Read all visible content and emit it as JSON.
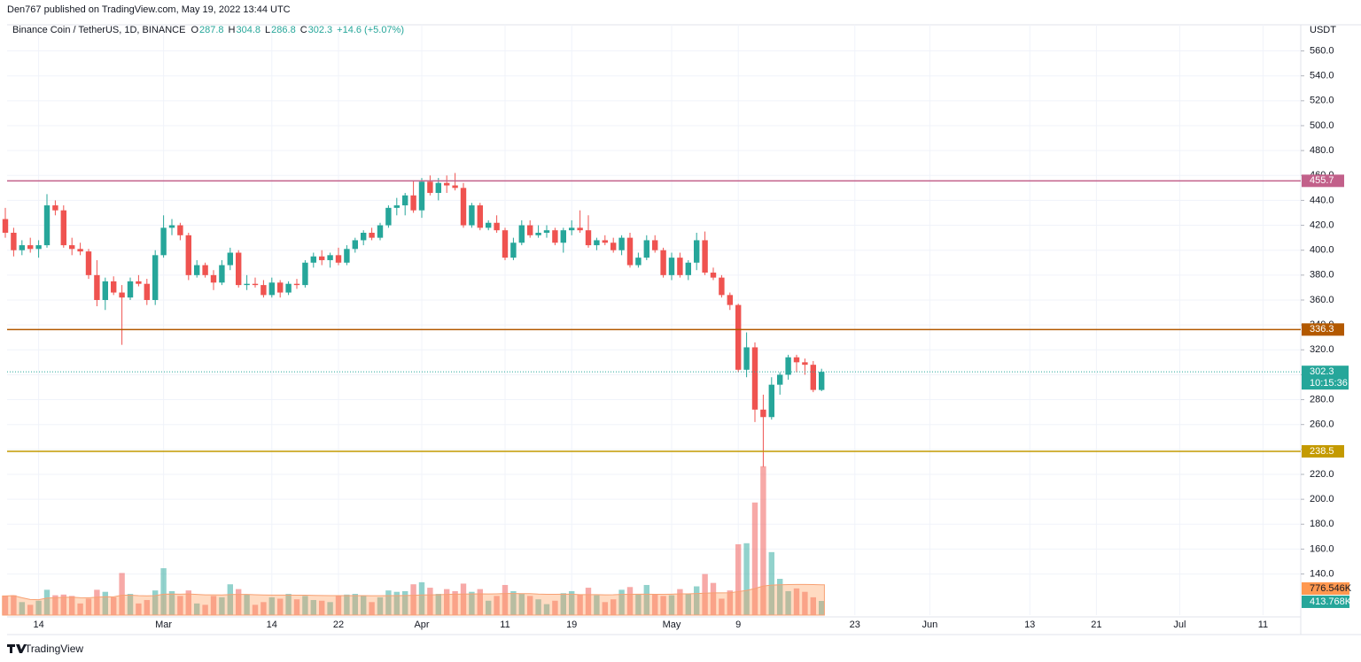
{
  "publisher": "Den767 published on TradingView.com, May 19, 2022 13:44 UTC",
  "footer": "TradingView",
  "chart_data": {
    "type": "candlestick",
    "title": "Binance Coin / TetherUS, 1D, BINANCE",
    "legend_keys": [
      "O",
      "H",
      "L",
      "C"
    ],
    "change": "+14.6 (+5.07%)",
    "y_unit": "USDT",
    "x": [
      "02-10",
      "02-11",
      "02-12",
      "02-13",
      "02-14",
      "02-15",
      "02-16",
      "02-17",
      "02-18",
      "02-19",
      "02-20",
      "02-21",
      "02-22",
      "02-23",
      "02-24",
      "02-25",
      "02-26",
      "02-27",
      "02-28",
      "03-01",
      "03-02",
      "03-03",
      "03-04",
      "03-05",
      "03-06",
      "03-07",
      "03-08",
      "03-09",
      "03-10",
      "03-11",
      "03-12",
      "03-13",
      "03-14",
      "03-15",
      "03-16",
      "03-17",
      "03-18",
      "03-19",
      "03-20",
      "03-21",
      "03-22",
      "03-23",
      "03-24",
      "03-25",
      "03-26",
      "03-27",
      "03-28",
      "03-29",
      "03-30",
      "03-31",
      "04-01",
      "04-02",
      "04-03",
      "04-04",
      "04-05",
      "04-06",
      "04-07",
      "04-08",
      "04-09",
      "04-10",
      "04-11",
      "04-12",
      "04-13",
      "04-14",
      "04-15",
      "04-16",
      "04-17",
      "04-18",
      "04-19",
      "04-20",
      "04-21",
      "04-22",
      "04-23",
      "04-24",
      "04-25",
      "04-26",
      "04-27",
      "04-28",
      "04-29",
      "04-30",
      "05-01",
      "05-02",
      "05-03",
      "05-04",
      "05-05",
      "05-06",
      "05-07",
      "05-08",
      "05-09",
      "05-10",
      "05-11",
      "05-12",
      "05-13",
      "05-14",
      "05-15",
      "05-16",
      "05-17",
      "05-18",
      "05-19"
    ],
    "open": [
      425,
      414,
      400,
      404,
      401,
      404,
      436,
      432,
      404,
      401,
      399,
      380,
      360,
      375,
      366,
      362,
      375,
      373,
      360,
      396,
      418,
      420,
      412,
      380,
      388,
      380,
      374,
      388,
      398,
      372,
      373,
      372,
      364,
      374,
      366,
      373,
      372,
      390,
      395,
      392,
      396,
      390,
      401,
      408,
      414,
      410,
      420,
      434,
      436,
      444,
      432,
      455,
      446,
      454,
      452,
      450,
      420,
      436,
      418,
      422,
      416,
      394,
      406,
      420,
      412,
      414,
      416,
      406,
      416,
      418,
      416,
      404,
      408,
      406,
      400,
      410,
      388,
      394,
      408,
      400,
      380,
      394,
      380,
      390,
      408,
      382,
      378,
      364,
      356,
      304,
      322,
      272,
      266,
      292,
      300,
      314,
      310,
      308,
      287.8
    ],
    "high": [
      434,
      418,
      408,
      410,
      408,
      445,
      440,
      436,
      410,
      406,
      401,
      392,
      378,
      379,
      372,
      378,
      380,
      377,
      400,
      428,
      425,
      422,
      414,
      392,
      390,
      384,
      392,
      402,
      400,
      380,
      378,
      376,
      378,
      376,
      375,
      377,
      392,
      398,
      400,
      398,
      402,
      404,
      410,
      416,
      418,
      422,
      436,
      442,
      446,
      456,
      458,
      460,
      458,
      460,
      462,
      454,
      438,
      438,
      424,
      428,
      418,
      410,
      424,
      424,
      420,
      420,
      418,
      418,
      424,
      432,
      428,
      410,
      412,
      410,
      412,
      414,
      398,
      412,
      412,
      402,
      398,
      398,
      392,
      414,
      415,
      386,
      380,
      366,
      357,
      334,
      326,
      284,
      298,
      302,
      316,
      316,
      313,
      311,
      304.8
    ],
    "low": [
      410,
      395,
      396,
      398,
      394,
      402,
      428,
      402,
      396,
      396,
      377,
      355,
      352,
      364,
      324,
      360,
      371,
      356,
      356,
      394,
      412,
      408,
      376,
      378,
      378,
      368,
      372,
      384,
      370,
      368,
      370,
      362,
      362,
      362,
      364,
      369,
      370,
      386,
      388,
      386,
      388,
      388,
      398,
      404,
      408,
      408,
      418,
      428,
      428,
      430,
      426,
      444,
      440,
      446,
      448,
      418,
      418,
      416,
      416,
      414,
      392,
      392,
      404,
      410,
      410,
      410,
      404,
      398,
      412,
      414,
      402,
      400,
      404,
      398,
      396,
      386,
      386,
      392,
      398,
      378,
      376,
      378,
      376,
      384,
      380,
      376,
      362,
      352,
      302,
      298,
      262,
      226,
      264,
      284,
      296,
      302,
      300,
      286,
      286.8
    ],
    "close": [
      414,
      400,
      404,
      401,
      404,
      436,
      432,
      404,
      401,
      399,
      380,
      360,
      375,
      366,
      362,
      375,
      373,
      360,
      396,
      418,
      420,
      412,
      380,
      388,
      380,
      374,
      388,
      398,
      372,
      373,
      372,
      364,
      374,
      366,
      373,
      372,
      390,
      395,
      392,
      396,
      390,
      401,
      408,
      414,
      410,
      420,
      434,
      436,
      444,
      432,
      455,
      446,
      454,
      452,
      450,
      420,
      436,
      418,
      422,
      416,
      394,
      406,
      420,
      412,
      414,
      416,
      406,
      416,
      418,
      416,
      404,
      408,
      406,
      400,
      410,
      388,
      394,
      408,
      400,
      380,
      394,
      380,
      390,
      408,
      382,
      378,
      364,
      356,
      304,
      322,
      272,
      266,
      292,
      300,
      314,
      310,
      308,
      287.8,
      302.3
    ],
    "volume": [
      560,
      580,
      380,
      300,
      420,
      740,
      580,
      600,
      560,
      340,
      480,
      740,
      680,
      520,
      1230,
      620,
      340,
      440,
      720,
      1370,
      700,
      560,
      720,
      340,
      300,
      560,
      520,
      900,
      760,
      600,
      300,
      380,
      520,
      480,
      620,
      460,
      560,
      440,
      420,
      380,
      560,
      600,
      620,
      560,
      380,
      520,
      720,
      680,
      700,
      900,
      960,
      800,
      620,
      760,
      700,
      920,
      680,
      760,
      420,
      560,
      880,
      700,
      620,
      560,
      460,
      320,
      420,
      640,
      700,
      600,
      800,
      580,
      380,
      460,
      740,
      820,
      600,
      880,
      620,
      560,
      580,
      760,
      620,
      840,
      1200,
      940,
      480,
      720,
      2070,
      2100,
      3290,
      4350,
      1840,
      1060,
      700,
      780,
      680,
      520,
      413.768
    ],
    "volume_last_label": "413.768K",
    "volume_ma": {
      "value": 776.546,
      "label": "776.546K"
    },
    "volume_lim": [
      0,
      4500
    ],
    "up_color": "#26a69a",
    "down_color": "#ef5350",
    "ylim": [
      107,
      581
    ],
    "yticks": [
      {
        "value": 140,
        "label": "140.0"
      },
      {
        "value": 160,
        "label": "160.0"
      },
      {
        "value": 180,
        "label": "180.0"
      },
      {
        "value": 200,
        "label": "200.0"
      },
      {
        "value": 220,
        "label": "220.0"
      },
      {
        "value": 240,
        "label": "240.0"
      },
      {
        "value": 260,
        "label": "260.0"
      },
      {
        "value": 280,
        "label": "280.0"
      },
      {
        "value": 300,
        "label": "300.0"
      },
      {
        "value": 320,
        "label": "320.0"
      },
      {
        "value": 340,
        "label": "340.0"
      },
      {
        "value": 360,
        "label": "360.0"
      },
      {
        "value": 380,
        "label": "380.0"
      },
      {
        "value": 400,
        "label": "400.0"
      },
      {
        "value": 420,
        "label": "420.0"
      },
      {
        "value": 440,
        "label": "440.0"
      },
      {
        "value": 460,
        "label": "460.0"
      },
      {
        "value": 480,
        "label": "480.0"
      },
      {
        "value": 500,
        "label": "500.0"
      },
      {
        "value": 520,
        "label": "520.0"
      },
      {
        "value": 540,
        "label": "540.0"
      },
      {
        "value": 560,
        "label": "560.0"
      }
    ],
    "xlim": [
      "02-10",
      "07-15"
    ],
    "xticks": [
      {
        "value": "02-14",
        "label": "14"
      },
      {
        "value": "03-01",
        "label": "Mar"
      },
      {
        "value": "03-14",
        "label": "14"
      },
      {
        "value": "03-22",
        "label": "22"
      },
      {
        "value": "04-01",
        "label": "Apr"
      },
      {
        "value": "04-11",
        "label": "11"
      },
      {
        "value": "04-19",
        "label": "19"
      },
      {
        "value": "05-01",
        "label": "May"
      },
      {
        "value": "05-09",
        "label": "9"
      },
      {
        "value": "05-23",
        "label": "23"
      },
      {
        "value": "06-01",
        "label": "Jun"
      },
      {
        "value": "06-13",
        "label": "13"
      },
      {
        "value": "06-21",
        "label": "21"
      },
      {
        "value": "07-01",
        "label": "Jul"
      },
      {
        "value": "07-11",
        "label": "11"
      }
    ],
    "grid": true,
    "levels": [
      {
        "value": 455.7,
        "color": "#c2608a"
      },
      {
        "value": 336.3,
        "color": "#b35900"
      },
      {
        "value": 238.5,
        "color": "#c49a00"
      }
    ],
    "countdown": "10:15:36"
  }
}
